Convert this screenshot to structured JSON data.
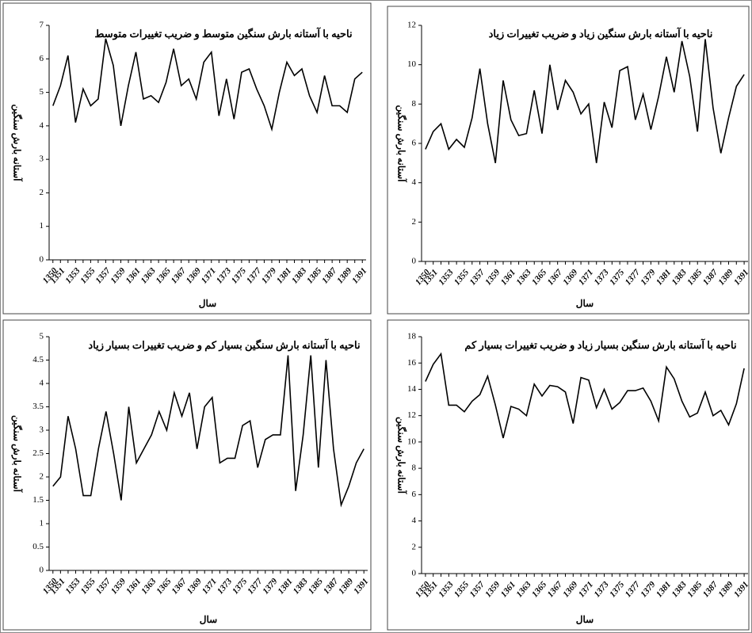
{
  "chart_data": [
    {
      "type": "line",
      "title": "ناحیه با آستانه بارش سنگین متوسط و ضریب تغییرات متوسط",
      "x_label": "سال",
      "y_label": "آستانه بارش سنگین",
      "color": "#000000",
      "categories": [
        "1350",
        "1351",
        null,
        "1353",
        null,
        "1355",
        null,
        "1357",
        null,
        "1359",
        null,
        "1361",
        null,
        "1363",
        null,
        "1365",
        null,
        "1367",
        null,
        "1369",
        null,
        "1371",
        null,
        "1373",
        null,
        "1375",
        null,
        "1377",
        null,
        "1379",
        null,
        "1381",
        null,
        "1383",
        null,
        "1385",
        null,
        "1387",
        null,
        "1389",
        null,
        "1391"
      ],
      "values": [
        4.6,
        5.2,
        6.1,
        4.1,
        5.1,
        4.6,
        4.8,
        6.6,
        5.8,
        4.0,
        5.2,
        6.2,
        4.8,
        4.9,
        4.7,
        5.3,
        6.3,
        5.2,
        5.4,
        4.8,
        5.9,
        6.2,
        4.3,
        5.4,
        4.2,
        5.6,
        5.7,
        5.1,
        4.6,
        3.9,
        5.0,
        5.9,
        5.5,
        5.7,
        4.9,
        4.4,
        5.5,
        4.6,
        4.6,
        4.4,
        5.4,
        5.6
      ],
      "ylim": [
        0,
        7
      ],
      "yticks": [
        0,
        1,
        2,
        3,
        4,
        5,
        6,
        7
      ]
    },
    {
      "type": "line",
      "title": "ناحیه با آستانه بارش سنگین زیاد و ضریب تغییرات زیاد",
      "x_label": "سال",
      "y_label": "آستانه بارش سنگین",
      "color": "#000000",
      "categories": [
        "1350",
        "1351",
        null,
        "1353",
        null,
        "1355",
        null,
        "1357",
        null,
        "1359",
        null,
        "1361",
        null,
        "1363",
        null,
        "1365",
        null,
        "1367",
        null,
        "1369",
        null,
        "1371",
        null,
        "1373",
        null,
        "1375",
        null,
        "1377",
        null,
        "1379",
        null,
        "1381",
        null,
        "1383",
        null,
        "1385",
        null,
        "1387",
        null,
        "1389",
        null,
        "1391"
      ],
      "values": [
        5.7,
        6.6,
        7.0,
        5.7,
        6.2,
        5.8,
        7.3,
        9.8,
        7.0,
        5.0,
        9.2,
        7.2,
        6.4,
        6.5,
        8.7,
        6.5,
        10.0,
        7.7,
        9.2,
        8.6,
        7.5,
        8.0,
        5.0,
        8.1,
        6.8,
        9.7,
        9.9,
        7.2,
        8.5,
        6.7,
        8.4,
        10.4,
        8.6,
        11.2,
        9.4,
        6.6,
        11.3,
        7.8,
        5.5,
        7.3,
        8.9,
        9.5
      ],
      "ylim": [
        0,
        12
      ],
      "yticks": [
        0,
        2,
        4,
        6,
        8,
        10,
        12
      ]
    },
    {
      "type": "line",
      "title": "ناحیه با آستانه بارش سنگین بسیار کم و ضریب تغییرات بسیار زیاد",
      "x_label": "سال",
      "y_label": "آستانه بارش سنگین",
      "color": "#000000",
      "categories": [
        "1350",
        "1351",
        null,
        "1353",
        null,
        "1355",
        null,
        "1357",
        null,
        "1359",
        null,
        "1361",
        null,
        "1363",
        null,
        "1365",
        null,
        "1367",
        null,
        "1369",
        null,
        "1371",
        null,
        "1373",
        null,
        "1375",
        null,
        "1377",
        null,
        "1379",
        null,
        "1381",
        null,
        "1383",
        null,
        "1385",
        null,
        "1387",
        null,
        "1389",
        null,
        "1391"
      ],
      "values": [
        1.8,
        2.0,
        3.3,
        2.6,
        1.6,
        1.6,
        2.6,
        3.4,
        2.5,
        1.5,
        3.5,
        2.3,
        2.6,
        2.9,
        3.4,
        3.0,
        3.8,
        3.3,
        3.8,
        2.6,
        3.5,
        3.7,
        2.3,
        2.4,
        2.4,
        3.1,
        3.2,
        2.2,
        2.8,
        2.9,
        2.9,
        4.6,
        1.7,
        2.9,
        4.6,
        2.2,
        4.5,
        2.6,
        1.4,
        1.8,
        2.3,
        2.6
      ],
      "ylim": [
        0,
        5
      ],
      "yticks": [
        0,
        0.5,
        1,
        1.5,
        2,
        2.5,
        3,
        3.5,
        4,
        4.5,
        5
      ]
    },
    {
      "type": "line",
      "title": "ناحیه با آستانه بارش سنگین بسیار زیاد و ضریب تغییرات بسیار کم",
      "x_label": "سال",
      "y_label": "آستانه بارش سنگین",
      "color": "#000000",
      "categories": [
        "1350",
        "1351",
        null,
        "1353",
        null,
        "1355",
        null,
        "1357",
        null,
        "1359",
        null,
        "1361",
        null,
        "1363",
        null,
        "1365",
        null,
        "1367",
        null,
        "1369",
        null,
        "1371",
        null,
        "1373",
        null,
        "1375",
        null,
        "1377",
        null,
        "1379",
        null,
        "1381",
        null,
        "1383",
        null,
        "1385",
        null,
        "1387",
        null,
        "1389",
        null,
        "1391"
      ],
      "values": [
        14.6,
        15.9,
        16.7,
        12.8,
        12.8,
        12.3,
        13.1,
        13.6,
        15.0,
        12.8,
        10.3,
        12.7,
        12.5,
        12.0,
        14.4,
        13.5,
        14.3,
        14.2,
        13.8,
        11.4,
        14.9,
        14.7,
        12.6,
        14.0,
        12.5,
        13.0,
        13.9,
        13.9,
        14.1,
        13.1,
        11.6,
        15.7,
        14.8,
        13.1,
        11.9,
        12.2,
        13.8,
        12.0,
        12.4,
        11.3,
        12.9,
        15.6
      ],
      "ylim": [
        0,
        18
      ],
      "yticks": [
        0,
        2,
        4,
        6,
        8,
        10,
        12,
        14,
        16,
        18
      ]
    }
  ]
}
